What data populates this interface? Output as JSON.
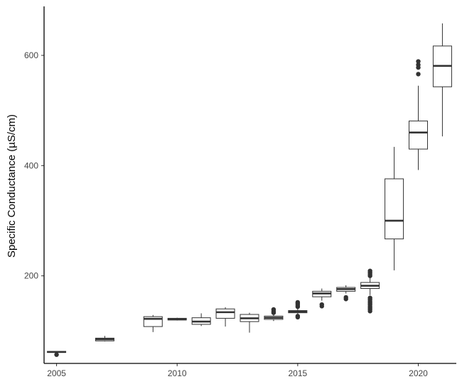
{
  "chart_data": {
    "type": "boxplot",
    "title": "",
    "xlabel": "",
    "ylabel": "Specific Conductance (µS/cm)",
    "xlim": [
      2004.6,
      2021.4
    ],
    "ylim": [
      45,
      685
    ],
    "x_ticks": [
      {
        "value": 2005,
        "label": "2005"
      },
      {
        "value": 2010,
        "label": "2010"
      },
      {
        "value": 2015,
        "label": "2015"
      },
      {
        "value": 2020,
        "label": "2020"
      }
    ],
    "y_ticks": [
      {
        "value": 200,
        "label": "200"
      },
      {
        "value": 400,
        "label": "400"
      },
      {
        "value": 600,
        "label": "600"
      }
    ],
    "grid": false,
    "legend": "none",
    "box_color": "#333333",
    "boxes": [
      {
        "x": 2005,
        "lower_whisker": 60,
        "q1": 61,
        "median": 62,
        "q3": 63,
        "upper_whisker": 63,
        "outliers": [
          57
        ]
      },
      {
        "x": 2007,
        "lower_whisker": 81,
        "q1": 82,
        "median": 85,
        "q3": 87,
        "upper_whisker": 91,
        "outliers": []
      },
      {
        "x": 2009,
        "lower_whisker": 98,
        "q1": 108,
        "median": 122,
        "q3": 126,
        "upper_whisker": 129,
        "outliers": []
      },
      {
        "x": 2010,
        "lower_whisker": 119,
        "q1": 120,
        "median": 121,
        "q3": 123,
        "upper_whisker": 124,
        "outliers": []
      },
      {
        "x": 2011,
        "lower_whisker": 109,
        "q1": 112,
        "median": 117,
        "q3": 124,
        "upper_whisker": 132,
        "outliers": []
      },
      {
        "x": 2012,
        "lower_whisker": 108,
        "q1": 123,
        "median": 134,
        "q3": 140,
        "upper_whisker": 143,
        "outliers": []
      },
      {
        "x": 2013,
        "lower_whisker": 97,
        "q1": 117,
        "median": 123,
        "q3": 130,
        "upper_whisker": 133,
        "outliers": []
      },
      {
        "x": 2014,
        "lower_whisker": 118,
        "q1": 121,
        "median": 124,
        "q3": 127,
        "upper_whisker": 130,
        "outliers": [
          133,
          136,
          139
        ]
      },
      {
        "x": 2015,
        "lower_whisker": 130,
        "q1": 133,
        "median": 135,
        "q3": 137,
        "upper_whisker": 141,
        "outliers": [
          125,
          127,
          144,
          147,
          150,
          152
        ]
      },
      {
        "x": 2016,
        "lower_whisker": 155,
        "q1": 162,
        "median": 168,
        "q3": 172,
        "upper_whisker": 177,
        "outliers": [
          145,
          148
        ]
      },
      {
        "x": 2017,
        "lower_whisker": 168,
        "q1": 172,
        "median": 176,
        "q3": 179,
        "upper_whisker": 183,
        "outliers": [
          158,
          161
        ]
      },
      {
        "x": 2018,
        "lower_whisker": 165,
        "q1": 177,
        "median": 182,
        "q3": 188,
        "upper_whisker": 197,
        "outliers": [
          136,
          139,
          142,
          145,
          148,
          151,
          154,
          157,
          160,
          200,
          203,
          206,
          209
        ]
      },
      {
        "x": 2019,
        "lower_whisker": 210,
        "q1": 267,
        "median": 300,
        "q3": 376,
        "upper_whisker": 434,
        "outliers": []
      },
      {
        "x": 2020,
        "lower_whisker": 392,
        "q1": 430,
        "median": 460,
        "q3": 481,
        "upper_whisker": 545,
        "outliers": [
          566,
          578,
          583,
          589
        ]
      },
      {
        "x": 2021,
        "lower_whisker": 453,
        "q1": 543,
        "median": 581,
        "q3": 617,
        "upper_whisker": 658,
        "outliers": []
      }
    ]
  }
}
